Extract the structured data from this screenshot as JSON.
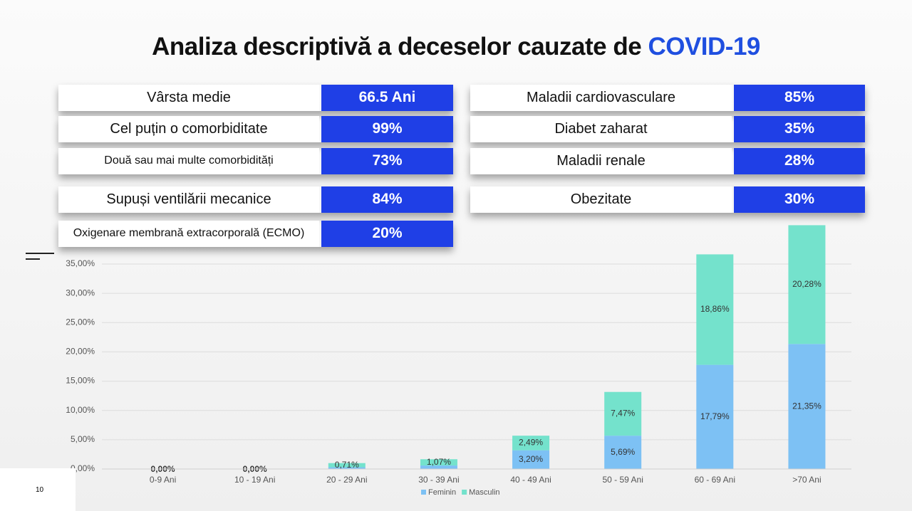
{
  "title": {
    "text": "Analiza descriptivă a deceselor cauzate de",
    "highlight": "COVID-19"
  },
  "tables": {
    "left": {
      "rows": [
        {
          "label": "Vârsta medie",
          "value": "66.5 Ani"
        },
        {
          "label": "Cel puțin o comorbiditate",
          "value": "99%"
        },
        {
          "label": "Două sau mai multe comorbidități",
          "value": "73%"
        },
        {
          "label": "Supuși ventilării mecanice",
          "value": "84%"
        },
        {
          "label": "Oxigenare membrană extracorporală (ECMO)",
          "value": "20%"
        }
      ]
    },
    "right": {
      "rows": [
        {
          "label": "Maladii cardiovasculare",
          "value": "85%"
        },
        {
          "label": "Diabet zaharat",
          "value": "35%"
        },
        {
          "label": "Maladii renale",
          "value": "28%"
        },
        {
          "label": "Obezitate",
          "value": "30%"
        }
      ]
    }
  },
  "chart_data": {
    "type": "stacked-bar",
    "categories": [
      "0-9 Ani",
      "10 - 19 Ani",
      "20 - 29 Ani",
      "30 - 39 Ani",
      "40 - 49 Ani",
      "50 - 59 Ani",
      "60 - 69 Ani",
      ">70 Ani"
    ],
    "series": [
      {
        "name": "Feminin",
        "color": "#7dc1f4",
        "values": [
          0,
          0,
          0.3,
          0.6,
          3.2,
          5.69,
          17.79,
          21.35
        ],
        "value_labels": [
          "0,00%",
          "0,00%",
          null,
          null,
          "3,20%",
          "5,69%",
          "17,79%",
          "21,35%"
        ]
      },
      {
        "name": "Masculin",
        "color": "#74e2cc",
        "values": [
          0,
          0,
          0.71,
          1.07,
          2.49,
          7.47,
          18.86,
          20.28
        ],
        "value_labels": [
          null,
          null,
          "0,71%",
          "1,07%",
          "2,49%",
          "7,47%",
          "18,86%",
          "20,28%"
        ]
      }
    ],
    "ylim": [
      0,
      45
    ],
    "yticks": [
      {
        "value": 0,
        "label": "0,00%"
      },
      {
        "value": 5,
        "label": "5,00%"
      },
      {
        "value": 10,
        "label": "10,00%"
      },
      {
        "value": 15,
        "label": "15,00%"
      },
      {
        "value": 20,
        "label": "20,00%"
      },
      {
        "value": 25,
        "label": "25,00%"
      },
      {
        "value": 30,
        "label": "30,00%"
      },
      {
        "value": 35,
        "label": "35,00%"
      }
    ],
    "grid": true,
    "legend": "bottom"
  },
  "page_number": "10"
}
